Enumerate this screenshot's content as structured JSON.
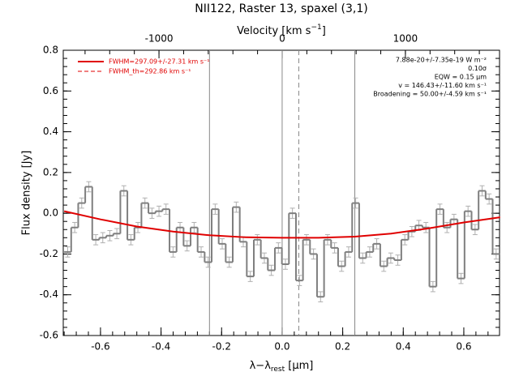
{
  "chart_data": {
    "type": "histogram",
    "title": "NII122, Raster 13, spaxel (3,1)",
    "xlabel": {
      "main": "λ−λ",
      "sub": "rest",
      "unit": " [μm]"
    },
    "ylabel": "Flux density [Jy]",
    "x2label": {
      "main": "Velocity [km s",
      "sup": "−1",
      "end": "]"
    },
    "xlim": [
      -0.723,
      0.718
    ],
    "ylim": [
      -0.6,
      0.8
    ],
    "x2lim": [
      -1777,
      1764
    ],
    "xticks": [
      -0.6,
      -0.4,
      -0.2,
      {
        "value": 0,
        "label": "0.0"
      },
      0.2,
      0.4,
      0.6
    ],
    "yticks": [
      -0.6,
      -0.4,
      -0.2,
      {
        "value": 0,
        "label": "0.0"
      },
      0.2,
      0.4,
      0.6,
      0.8
    ],
    "x2ticks": [
      -1000,
      0,
      1000
    ],
    "bins": [
      -0.72,
      -0.6968,
      -0.6736,
      -0.6504,
      -0.6272,
      -0.604,
      -0.5808,
      -0.5576,
      -0.5344,
      -0.5112,
      -0.488,
      -0.4648,
      -0.4416,
      -0.4184,
      -0.3952,
      -0.372,
      -0.3488,
      -0.3256,
      -0.3024,
      -0.2792,
      -0.256,
      -0.2328,
      -0.2096,
      -0.1864,
      -0.1632,
      -0.14,
      -0.1168,
      -0.0936,
      -0.0704,
      -0.0472,
      -0.024,
      -0.0008,
      0.0224,
      0.0456,
      0.0688,
      0.092,
      0.1152,
      0.1384,
      0.1616,
      0.1848,
      0.208,
      0.2312,
      0.2544,
      0.2776,
      0.3008,
      0.324,
      0.3472,
      0.3704,
      0.3936,
      0.4168,
      0.44,
      0.4632,
      0.4864,
      0.5096,
      0.5328,
      0.556,
      0.5792,
      0.6024,
      0.6256,
      0.6488,
      0.672,
      0.6952,
      0.7184
    ],
    "values": [
      -0.19,
      -0.07,
      0.05,
      0.13,
      -0.13,
      -0.12,
      -0.11,
      -0.1,
      0.11,
      -0.13,
      -0.07,
      0.05,
      0.0,
      0.01,
      0.02,
      -0.19,
      -0.07,
      -0.16,
      -0.07,
      -0.19,
      -0.24,
      0.02,
      -0.15,
      -0.24,
      0.03,
      -0.14,
      -0.31,
      -0.13,
      -0.22,
      -0.28,
      -0.17,
      -0.25,
      0.0,
      -0.33,
      -0.13,
      -0.2,
      -0.41,
      -0.13,
      -0.17,
      -0.26,
      -0.19,
      0.05,
      -0.22,
      -0.19,
      -0.15,
      -0.26,
      -0.22,
      -0.23,
      -0.13,
      -0.09,
      -0.06,
      -0.07,
      -0.36,
      0.02,
      -0.07,
      -0.03,
      -0.32,
      0.01,
      -0.08,
      0.11,
      0.07,
      -0.2
    ],
    "errors": [
      0.025,
      0.025,
      0.025,
      0.025,
      0.025,
      0.025,
      0.025,
      0.025,
      0.025,
      0.025,
      0.025,
      0.025,
      0.025,
      0.025,
      0.025,
      0.025,
      0.025,
      0.025,
      0.025,
      0.025,
      0.025,
      0.025,
      0.025,
      0.025,
      0.025,
      0.025,
      0.025,
      0.025,
      0.025,
      0.025,
      0.025,
      0.025,
      0.025,
      0.025,
      0.025,
      0.025,
      0.025,
      0.025,
      0.025,
      0.025,
      0.025,
      0.025,
      0.025,
      0.025,
      0.025,
      0.025,
      0.025,
      0.025,
      0.025,
      0.025,
      0.025,
      0.025,
      0.025,
      0.025,
      0.025,
      0.025,
      0.025,
      0.025,
      0.025,
      0.025,
      0.025,
      0.025
    ],
    "color": "#7f7f7f",
    "error_color": "#b0b0b0",
    "fit": {
      "name": "FWHM=297.09+/-27.31 km s⁻¹",
      "color": "#e00000",
      "x": [
        -0.72,
        -0.6,
        -0.48,
        -0.36,
        -0.24,
        -0.12,
        0,
        0.12,
        0.24,
        0.36,
        0.48,
        0.6,
        0.72
      ],
      "values": [
        0.01,
        -0.03,
        -0.065,
        -0.09,
        -0.108,
        -0.118,
        -0.12,
        -0.12,
        -0.115,
        -0.1,
        -0.075,
        -0.045,
        -0.02
      ]
    },
    "fit_th": {
      "name": "FWHM_th=292.86 km s⁻¹",
      "color": "#e00000"
    },
    "vlines": [
      -0.24,
      0,
      0.055,
      0.24
    ],
    "vline_styles": [
      "solid",
      "solid",
      "dashed",
      "solid"
    ],
    "legend": "upper left",
    "annotations": [
      "7.88e-20+/-7.35e-19 W m⁻²",
      "0.10σ",
      "EQW = 0.15 μm",
      "v = 146.43+/-11.60 km s⁻¹",
      "Broadening = 50.00+/-4.59 km s⁻¹"
    ]
  }
}
